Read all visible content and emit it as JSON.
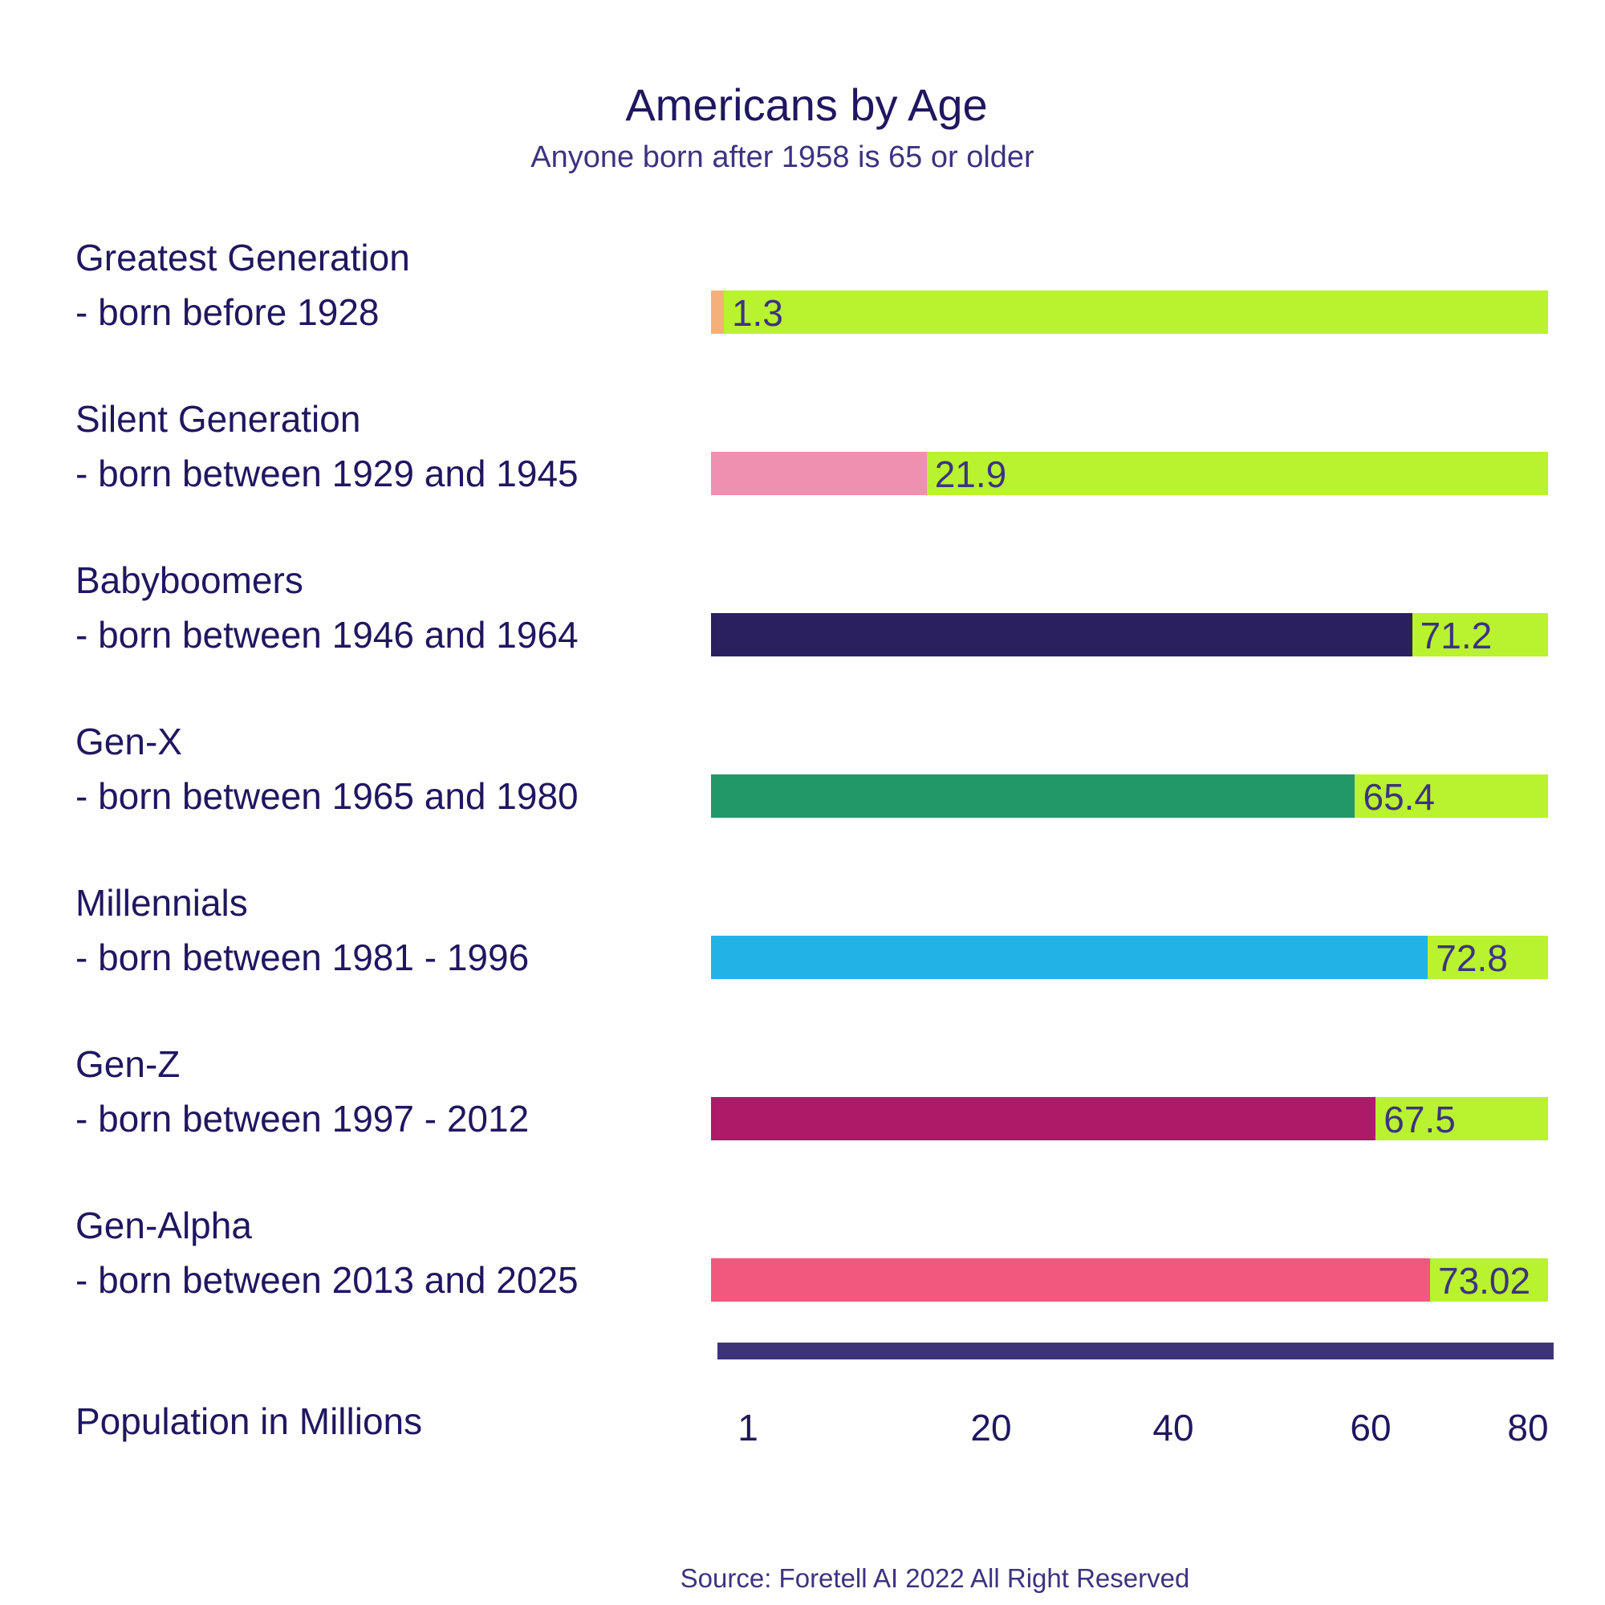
{
  "chart_data": {
    "type": "bar",
    "title": "Americans by Age",
    "subtitle": "Anyone born after 1958 is 65 or older",
    "categories": [
      {
        "name": "Greatest Generation",
        "range": "- born before 1928"
      },
      {
        "name": "Silent Generation",
        "range": "- born between 1929 and 1945"
      },
      {
        "name": "Babyboomers",
        "range": "- born between 1946 and 1964"
      },
      {
        "name": "Gen-X",
        "range": "- born between 1965 and 1980"
      },
      {
        "name": "Millennials",
        "range": "- born between 1981 - 1996"
      },
      {
        "name": "Gen-Z",
        "range": "- born between 1997 -  2012"
      },
      {
        "name": "Gen-Alpha",
        "range": "- born between 2013 and 2025"
      }
    ],
    "values": [
      1.3,
      21.9,
      71.2,
      65.4,
      72.8,
      67.5,
      73.02
    ],
    "value_labels": [
      "1.3",
      "21.9",
      "71.2",
      "65.4",
      "72.8",
      "67.5",
      "73.02"
    ],
    "colors": [
      "#f5b07a",
      "#f090b0",
      "#2a2060",
      "#229768",
      "#22b3e6",
      "#ae1a68",
      "#f2587d"
    ],
    "track_color": "#b9f22e",
    "xlabel": "Population in Millions",
    "xticks": [
      "1",
      "20",
      "40",
      "60",
      "80"
    ],
    "xlim": [
      0,
      85
    ],
    "orientation": "horizontal",
    "grid": false
  },
  "footer": {
    "source": "Source: Foretell AI 2022 All Right Reserved"
  }
}
